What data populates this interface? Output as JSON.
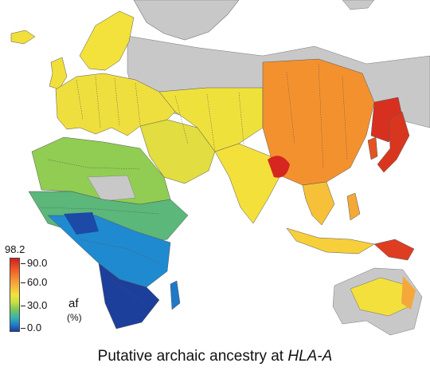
{
  "caption": {
    "text": "Putative archaic ancestry at ",
    "locus": "HLA-A"
  },
  "legend": {
    "max_label": "98.2",
    "ticks": [
      "90.0",
      "60.0",
      "30.0",
      "0.0"
    ],
    "tick_values": [
      90,
      60,
      30,
      0
    ],
    "max_value": 98.2,
    "variable_label": "af",
    "unit_label": "(%)",
    "colors": [
      "#d21f1f",
      "#f2662a",
      "#f6a13a",
      "#f3e23c",
      "#7cc957",
      "#37b0b4",
      "#1f78c8",
      "#1d3f9c"
    ]
  },
  "map_colors": {
    "ocean": "#ffffff",
    "no_data_land": "#c8c8c8",
    "border": "#555555"
  }
}
